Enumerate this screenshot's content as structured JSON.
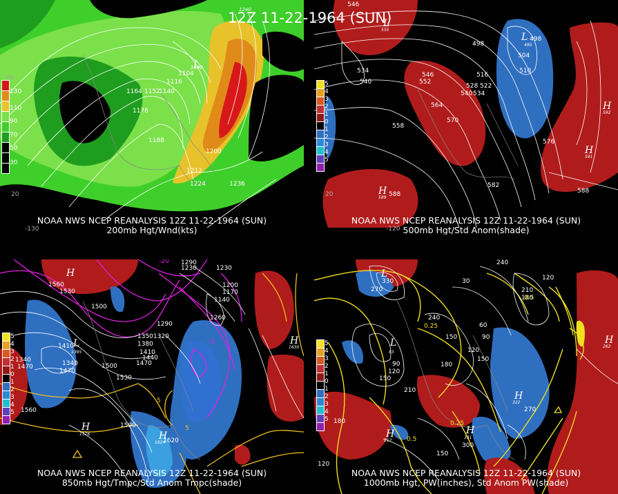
{
  "title": "12Z 11-22-1964 (SUN)",
  "colors": {
    "background": "#000000",
    "wind_dark_green": "#1f9d1f",
    "wind_green": "#3fcf2a",
    "wind_light_green": "#7be04a",
    "wind_yellow": "#e8c22a",
    "wind_orange": "#e08a1a",
    "wind_red": "#d81818",
    "anom_positive": "#b01c1c",
    "anom_negative": "#2f6fc0",
    "temp_contour": "#e020e0",
    "pw_contour": "#f0e020",
    "height_contour": "#ffffff"
  },
  "panels": [
    {
      "id": "200mb",
      "caption_line1": "NOAA NWS NCEP REANALYSIS 12Z 11-22-1964 (SUN)",
      "caption_line2": "200mb Hgt/Wnd(kts)",
      "legend_labels": [
        "130",
        "110",
        "90",
        "70",
        "50",
        "30"
      ],
      "height_labels": [
        "1104",
        "1116",
        "1164",
        "1152",
        "1140",
        "1176",
        "1188",
        "1200",
        "1212",
        "1224",
        "1236",
        "1100",
        "1240"
      ],
      "tick_labels": [
        "-130",
        "40",
        "20"
      ]
    },
    {
      "id": "500mb",
      "caption_line1": "NOAA NWS NCEP REANALYSIS 12Z 11-22-1964 (SUN)",
      "caption_line2": "500mb Hgt/Std Anom(shade)",
      "legend_labels": [
        "5",
        "4",
        "3",
        "2",
        "1",
        "0",
        "1",
        "2",
        "3",
        "4",
        "5"
      ],
      "height_labels": [
        "546",
        "534",
        "540",
        "546",
        "552",
        "564",
        "570",
        "558",
        "528",
        "522",
        "540",
        "534",
        "516",
        "510",
        "504",
        "498",
        "498",
        "576",
        "582",
        "588",
        "588"
      ],
      "centers": [
        {
          "type": "L",
          "value": "495"
        },
        {
          "type": "H",
          "value": "592"
        },
        {
          "type": "H",
          "value": "591"
        },
        {
          "type": "H",
          "value": "589"
        },
        {
          "type": "L",
          "value": "555"
        }
      ],
      "tick_labels": [
        "-120",
        "20"
      ]
    },
    {
      "id": "850mb",
      "caption_line1": "NOAA NWS NCEP REANALYSIS 12Z 11-22-1964 (SUN)",
      "caption_line2": "850mb Hgt/Tmpc/Std Anom Tmpc(shade)",
      "legend_labels": [
        "5",
        "4",
        "3",
        "2",
        "1",
        "0",
        "1",
        "2",
        "3",
        "4",
        "5"
      ],
      "height_labels": [
        "1560",
        "1530",
        "1500",
        "1410",
        "1340",
        "1470",
        "1340",
        "1470",
        "1500",
        "1350",
        "1320",
        "1380",
        "1410",
        "1440",
        "1470",
        "1290",
        "1260",
        "1230",
        "1200",
        "1170",
        "1140",
        "1530",
        "1560",
        "1590",
        "1620",
        "1290",
        "1230"
      ],
      "temp_labels": [
        "-20",
        "-5",
        "5",
        "5"
      ],
      "centers": [
        {
          "type": "H",
          "value": ""
        },
        {
          "type": "L",
          "value": "1395"
        },
        {
          "type": "H",
          "value": "1576"
        },
        {
          "type": "H",
          "value": "1630"
        },
        {
          "type": "H",
          "value": "1624"
        }
      ]
    },
    {
      "id": "1000mb",
      "caption_line1": "NOAA NWS NCEP REANALYSIS 12Z 11-22-1964 (SUN)",
      "caption_line2": "1000mb Hgt, PW(inches), Std Anom PW(shade)",
      "legend_labels": [
        "5",
        "4",
        "3",
        "2",
        "1",
        "0",
        "1",
        "2",
        "3",
        "4",
        "5"
      ],
      "height_labels": [
        "330",
        "270",
        "240",
        "30",
        "60",
        "90",
        "120",
        "150",
        "180",
        "90",
        "120",
        "150",
        "210",
        "180",
        "150",
        "300",
        "270",
        "240",
        "210",
        "180",
        "120",
        "150",
        "120"
      ],
      "pw_labels": [
        "0.25",
        "0.25",
        "0.5",
        "0.5"
      ],
      "centers": [
        {
          "type": "L",
          "value": ""
        },
        {
          "type": "L",
          "value": "83"
        },
        {
          "type": "H",
          "value": "212"
        },
        {
          "type": "H",
          "value": "322"
        },
        {
          "type": "H",
          "value": "262"
        },
        {
          "type": "H",
          "value": "331"
        }
      ]
    }
  ]
}
